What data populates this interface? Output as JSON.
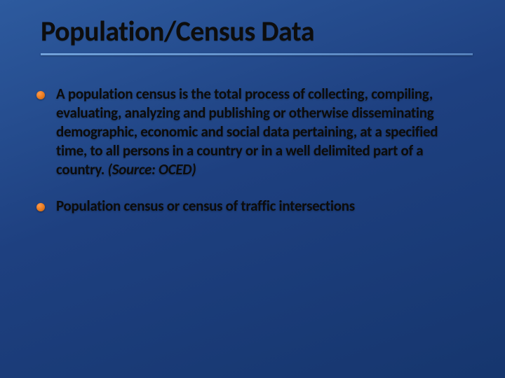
{
  "slide": {
    "background_gradient": [
      "#2d5a9e",
      "#1e4080",
      "#16366e"
    ],
    "title": {
      "text": "Population/Census Data",
      "font_size": 40,
      "font_weight": 700,
      "color": "#0d0d0d"
    },
    "rule_color": "#78aae1",
    "bullets": [
      {
        "text_main": "A population census is the total process of collecting, compiling, evaluating, analyzing and publishing or otherwise disseminating demographic, economic and social data pertaining, at a specified time, to all persons in a country or in a well delimited part of a country. ",
        "text_source": "(Source: OCED)",
        "bullet_color_stops": [
          "#ff9a4a",
          "#e67a1f",
          "#b85d12"
        ]
      },
      {
        "text_main": "Population census or census of traffic intersections",
        "text_source": "",
        "bullet_color_stops": [
          "#ff9a4a",
          "#e67a1f",
          "#b85d12"
        ]
      }
    ],
    "body_font_size": 21,
    "body_font_weight": 600,
    "body_color": "#0c0c0c"
  }
}
